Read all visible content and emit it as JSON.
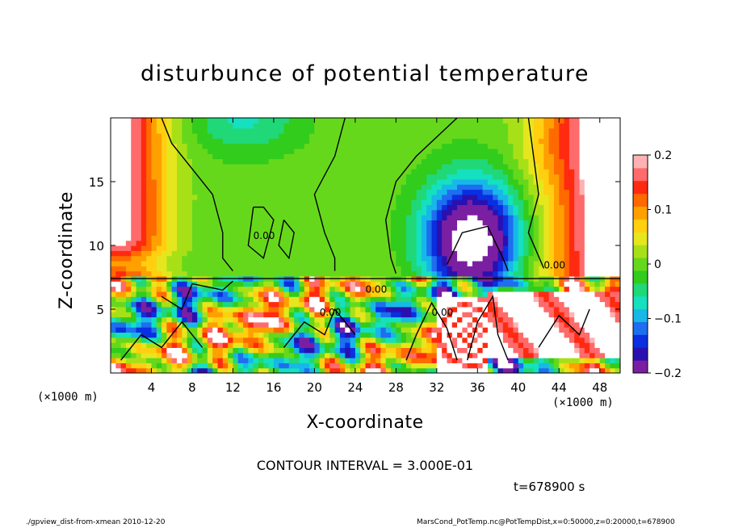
{
  "chart_data": {
    "type": "heatmap",
    "title": "disturbunce of potential temperature",
    "xlabel": "X-coordinate",
    "ylabel": "Z-coordinate",
    "x_unit": "(×1000 m)",
    "y_unit": "(×1000 m)",
    "xlim": [
      0,
      50
    ],
    "ylim": [
      0,
      20
    ],
    "x_ticks": [
      4,
      8,
      12,
      16,
      20,
      24,
      28,
      32,
      36,
      40,
      44,
      48
    ],
    "y_ticks": [
      5,
      10,
      15
    ],
    "colorbar": {
      "range": [
        -0.2,
        0.2
      ],
      "tick_values": [
        -0.2,
        -0.1,
        0,
        0.1,
        0.2
      ],
      "tick_labels": [
        "−0.2",
        "−0.1",
        "0",
        "0.1",
        "0.2"
      ],
      "colors": [
        "#7b1fa2",
        "#2b10b0",
        "#0a2fe0",
        "#1e6ef0",
        "#17b8e8",
        "#15e0c0",
        "#20d878",
        "#32cc1c",
        "#66d81c",
        "#a8e018",
        "#e6e61e",
        "#ffcf10",
        "#ffa000",
        "#ff6a00",
        "#ff2a10",
        "#ff6a6a",
        "#ffb2b2"
      ]
    },
    "contour_labels": [
      "0.00"
    ],
    "contour_interval_text": "CONTOUR INTERVAL = 3.000E-01",
    "time_text": "t=678900 s",
    "notes": {
      "upper_layer": "smooth field above z≈7.5 (×1000 m): warm anomalies near x≈0–4 and x≈44–50, near-zero green over x≈8–28, cold core (about −0.2) centered near x≈34–38, z≈9–14",
      "lower_layer": "turbulent mixed field below z≈7.5 with alternating warm and cold cells"
    }
  },
  "footer": {
    "left": "./gpview_dist-from-xmean  2010-12-20",
    "right": "MarsCond_PotTemp.nc@PotTempDist,x=0:50000,z=0:20000,t=678900"
  }
}
